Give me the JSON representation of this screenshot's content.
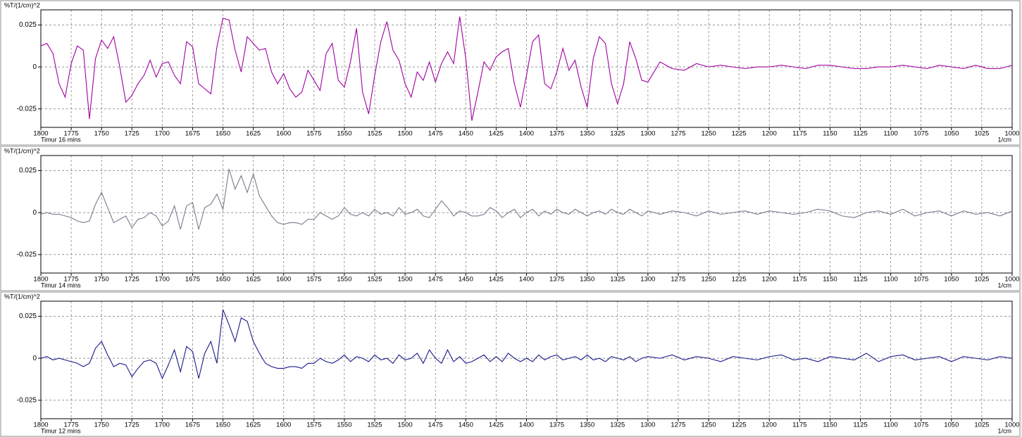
{
  "chart_data": [
    {
      "type": "line",
      "y_label": "%T/(1/cm)^2",
      "x_label": "1/cm",
      "x": [
        1800,
        1795,
        1790,
        1785,
        1780,
        1775,
        1770,
        1765,
        1760,
        1755,
        1750,
        1745,
        1740,
        1735,
        1730,
        1725,
        1720,
        1715,
        1710,
        1705,
        1700,
        1695,
        1690,
        1685,
        1680,
        1675,
        1670,
        1665,
        1660,
        1655,
        1650,
        1645,
        1640,
        1635,
        1630,
        1625,
        1620,
        1615,
        1610,
        1605,
        1600,
        1595,
        1590,
        1585,
        1580,
        1575,
        1570,
        1565,
        1560,
        1555,
        1550,
        1545,
        1540,
        1535,
        1530,
        1525,
        1520,
        1515,
        1510,
        1505,
        1500,
        1495,
        1490,
        1485,
        1480,
        1475,
        1470,
        1465,
        1460,
        1455,
        1450,
        1445,
        1440,
        1435,
        1430,
        1425,
        1420,
        1415,
        1410,
        1405,
        1400,
        1395,
        1390,
        1385,
        1380,
        1375,
        1370,
        1365,
        1360,
        1355,
        1350,
        1345,
        1340,
        1335,
        1330,
        1325,
        1320,
        1315,
        1310,
        1305,
        1300,
        1290,
        1280,
        1270,
        1260,
        1250,
        1240,
        1230,
        1220,
        1210,
        1200,
        1190,
        1180,
        1170,
        1160,
        1150,
        1140,
        1130,
        1120,
        1110,
        1100,
        1090,
        1080,
        1070,
        1060,
        1050,
        1040,
        1030,
        1020,
        1010,
        1000
      ],
      "series": [
        {
          "name": "Timur 16 mins",
          "color": "#a000a0",
          "values": [
            0.0125,
            0.014,
            0.008,
            -0.01,
            -0.018,
            0.002,
            0.0125,
            0.01,
            -0.031,
            0.005,
            0.016,
            0.011,
            0.018,
            0.0,
            -0.021,
            -0.017,
            -0.01,
            -0.005,
            0.004,
            -0.006,
            0.002,
            0.003,
            -0.005,
            -0.01,
            0.015,
            0.012,
            -0.01,
            -0.013,
            -0.016,
            0.012,
            0.029,
            0.028,
            0.01,
            -0.003,
            0.018,
            0.014,
            0.01,
            0.011,
            -0.003,
            -0.01,
            -0.004,
            -0.013,
            -0.018,
            -0.015,
            -0.002,
            -0.008,
            -0.014,
            0.008,
            0.014,
            -0.008,
            -0.012,
            0.003,
            0.023,
            -0.015,
            -0.028,
            -0.005,
            0.015,
            0.027,
            0.01,
            0.004,
            -0.01,
            -0.018,
            -0.003,
            -0.008,
            0.003,
            -0.009,
            0.002,
            0.009,
            0.002,
            0.03,
            0.005,
            -0.032,
            -0.015,
            0.003,
            -0.002,
            0.006,
            0.009,
            0.011,
            -0.01,
            -0.024,
            -0.005,
            0.015,
            0.019,
            -0.01,
            -0.013,
            -0.003,
            0.011,
            -0.002,
            0.004,
            -0.012,
            -0.024,
            0.005,
            0.018,
            0.014,
            -0.01,
            -0.022,
            -0.01,
            0.015,
            0.005,
            -0.008,
            -0.009,
            0.003,
            -0.001,
            -0.002,
            0.002,
            0.0,
            0.001,
            0.0,
            -0.001,
            0.0,
            0.0,
            0.001,
            0.0,
            -0.001,
            0.001,
            0.001,
            0.0,
            -0.001,
            -0.001,
            0.0,
            0.0,
            0.001,
            0.0,
            -0.001,
            0.001,
            0.0,
            -0.001,
            0.001,
            -0.001,
            -0.001,
            0.001
          ]
        }
      ],
      "xlim": [
        1800,
        1000
      ],
      "ylim": [
        -0.036,
        0.034
      ],
      "yticks": [
        -0.025,
        0,
        0.025
      ],
      "xticks": [
        1800,
        1775,
        1750,
        1725,
        1700,
        1675,
        1650,
        1625,
        1600,
        1575,
        1550,
        1525,
        1500,
        1475,
        1450,
        1425,
        1400,
        1375,
        1350,
        1325,
        1300,
        1275,
        1250,
        1225,
        1200,
        1175,
        1150,
        1125,
        1100,
        1075,
        1050,
        1025,
        1000
      ],
      "grid": true
    },
    {
      "type": "line",
      "y_label": "%T/(1/cm)^2",
      "x_label": "1/cm",
      "x": [
        1800,
        1795,
        1790,
        1785,
        1780,
        1775,
        1770,
        1765,
        1760,
        1755,
        1750,
        1745,
        1740,
        1735,
        1730,
        1725,
        1720,
        1715,
        1710,
        1705,
        1700,
        1695,
        1690,
        1685,
        1680,
        1675,
        1670,
        1665,
        1660,
        1655,
        1650,
        1645,
        1640,
        1635,
        1630,
        1625,
        1620,
        1615,
        1610,
        1605,
        1600,
        1595,
        1590,
        1585,
        1580,
        1575,
        1570,
        1565,
        1560,
        1555,
        1550,
        1545,
        1540,
        1535,
        1530,
        1525,
        1520,
        1515,
        1510,
        1505,
        1500,
        1495,
        1490,
        1485,
        1480,
        1475,
        1470,
        1465,
        1460,
        1455,
        1450,
        1445,
        1440,
        1435,
        1430,
        1425,
        1420,
        1415,
        1410,
        1405,
        1400,
        1395,
        1390,
        1385,
        1380,
        1375,
        1370,
        1365,
        1360,
        1355,
        1350,
        1345,
        1340,
        1335,
        1330,
        1325,
        1320,
        1315,
        1310,
        1305,
        1300,
        1290,
        1280,
        1270,
        1260,
        1250,
        1240,
        1230,
        1220,
        1210,
        1200,
        1190,
        1180,
        1170,
        1160,
        1150,
        1140,
        1130,
        1120,
        1110,
        1100,
        1090,
        1080,
        1070,
        1060,
        1050,
        1040,
        1030,
        1020,
        1010,
        1000
      ],
      "series": [
        {
          "name": "Timur 14 mins",
          "color": "#7a7a90",
          "values": [
            -0.001,
            0.0,
            -0.001,
            -0.001,
            -0.002,
            -0.003,
            -0.005,
            -0.006,
            -0.005,
            0.005,
            0.012,
            0.003,
            -0.006,
            -0.004,
            -0.002,
            -0.009,
            -0.004,
            -0.003,
            0.0,
            -0.002,
            -0.008,
            -0.005,
            0.004,
            -0.01,
            0.004,
            0.006,
            -0.01,
            0.003,
            0.005,
            0.011,
            0.002,
            0.026,
            0.014,
            0.022,
            0.012,
            0.023,
            0.01,
            0.004,
            -0.002,
            -0.006,
            -0.007,
            -0.006,
            -0.006,
            -0.007,
            -0.004,
            -0.004,
            0.0,
            -0.002,
            -0.004,
            -0.002,
            0.003,
            -0.001,
            -0.002,
            0.0,
            -0.002,
            0.002,
            -0.001,
            0.0,
            -0.002,
            0.003,
            -0.001,
            0.0,
            0.002,
            -0.002,
            -0.003,
            0.002,
            0.007,
            0.003,
            -0.002,
            0.001,
            0.0,
            -0.002,
            -0.002,
            -0.001,
            0.003,
            0.001,
            -0.003,
            0.0,
            0.002,
            -0.003,
            0.0,
            0.002,
            -0.002,
            0.001,
            -0.001,
            0.002,
            0.0,
            -0.001,
            0.002,
            0.0,
            -0.002,
            0.0,
            0.001,
            -0.001,
            0.002,
            0.0,
            -0.001,
            0.002,
            0.0,
            -0.002,
            0.001,
            -0.001,
            0.001,
            0.0,
            -0.002,
            0.001,
            -0.001,
            0.0,
            0.001,
            -0.001,
            0.001,
            0.0,
            -0.001,
            0.0,
            0.002,
            0.001,
            -0.002,
            -0.003,
            0.0,
            0.001,
            -0.001,
            0.002,
            -0.002,
            0.0,
            0.001,
            -0.002,
            0.001,
            -0.001,
            0.0,
            -0.002,
            0.001
          ]
        }
      ],
      "xlim": [
        1800,
        1000
      ],
      "ylim": [
        -0.036,
        0.034
      ],
      "yticks": [
        -0.025,
        0,
        0.025
      ],
      "xticks": [
        1800,
        1775,
        1750,
        1725,
        1700,
        1675,
        1650,
        1625,
        1600,
        1575,
        1550,
        1525,
        1500,
        1475,
        1450,
        1425,
        1400,
        1375,
        1350,
        1325,
        1300,
        1275,
        1250,
        1225,
        1200,
        1175,
        1150,
        1125,
        1100,
        1075,
        1050,
        1025,
        1000
      ],
      "grid": true
    },
    {
      "type": "line",
      "y_label": "%T/(1/cm)^2",
      "x_label": "1/cm",
      "x": [
        1800,
        1795,
        1790,
        1785,
        1780,
        1775,
        1770,
        1765,
        1760,
        1755,
        1750,
        1745,
        1740,
        1735,
        1730,
        1725,
        1720,
        1715,
        1710,
        1705,
        1700,
        1695,
        1690,
        1685,
        1680,
        1675,
        1670,
        1665,
        1660,
        1655,
        1650,
        1645,
        1640,
        1635,
        1630,
        1625,
        1620,
        1615,
        1610,
        1605,
        1600,
        1595,
        1590,
        1585,
        1580,
        1575,
        1570,
        1565,
        1560,
        1555,
        1550,
        1545,
        1540,
        1535,
        1530,
        1525,
        1520,
        1515,
        1510,
        1505,
        1500,
        1495,
        1490,
        1485,
        1480,
        1475,
        1470,
        1465,
        1460,
        1455,
        1450,
        1445,
        1440,
        1435,
        1430,
        1425,
        1420,
        1415,
        1410,
        1405,
        1400,
        1395,
        1390,
        1385,
        1380,
        1375,
        1370,
        1365,
        1360,
        1355,
        1350,
        1345,
        1340,
        1335,
        1330,
        1325,
        1320,
        1315,
        1310,
        1305,
        1300,
        1290,
        1280,
        1270,
        1260,
        1250,
        1240,
        1230,
        1220,
        1210,
        1200,
        1190,
        1180,
        1170,
        1160,
        1150,
        1140,
        1130,
        1120,
        1110,
        1100,
        1090,
        1080,
        1070,
        1060,
        1050,
        1040,
        1030,
        1020,
        1010,
        1000
      ],
      "series": [
        {
          "name": "Timur 12 mins",
          "color": "#1a1a8c",
          "values": [
            0.0,
            0.001,
            -0.001,
            0.0,
            -0.001,
            -0.002,
            -0.003,
            -0.005,
            -0.003,
            0.006,
            0.01,
            0.002,
            -0.005,
            -0.003,
            -0.004,
            -0.011,
            -0.006,
            -0.002,
            -0.001,
            -0.003,
            -0.012,
            -0.004,
            0.005,
            -0.008,
            0.007,
            0.004,
            -0.012,
            0.003,
            0.01,
            -0.003,
            0.029,
            0.02,
            0.01,
            0.024,
            0.022,
            0.01,
            0.003,
            -0.003,
            -0.005,
            -0.006,
            -0.006,
            -0.005,
            -0.005,
            -0.006,
            -0.003,
            -0.003,
            0.0,
            -0.002,
            -0.003,
            -0.001,
            0.002,
            -0.002,
            0.001,
            0.0,
            -0.002,
            0.002,
            -0.001,
            0.0,
            -0.003,
            0.002,
            -0.001,
            0.0,
            0.003,
            -0.003,
            0.005,
            0.0,
            -0.003,
            0.005,
            -0.002,
            0.001,
            -0.003,
            -0.002,
            0.0,
            0.002,
            -0.002,
            0.001,
            -0.002,
            0.003,
            0.0,
            -0.002,
            0.0,
            -0.002,
            0.002,
            -0.001,
            0.001,
            0.002,
            -0.001,
            0.0,
            0.001,
            -0.001,
            0.002,
            -0.001,
            0.0,
            -0.002,
            0.001,
            0.0,
            -0.001,
            0.001,
            -0.002,
            0.0,
            0.001,
            0.0,
            0.002,
            -0.001,
            0.001,
            0.0,
            -0.002,
            0.001,
            0.0,
            -0.001,
            0.001,
            0.002,
            -0.001,
            0.0,
            -0.002,
            0.001,
            0.0,
            -0.001,
            0.003,
            -0.002,
            0.001,
            0.002,
            -0.001,
            0.0,
            0.001,
            -0.002,
            0.001,
            0.0,
            -0.001,
            0.001,
            0.0
          ]
        }
      ],
      "xlim": [
        1800,
        1000
      ],
      "ylim": [
        -0.036,
        0.034
      ],
      "yticks": [
        -0.025,
        0,
        0.025
      ],
      "xticks": [
        1800,
        1775,
        1750,
        1725,
        1700,
        1675,
        1650,
        1625,
        1600,
        1575,
        1550,
        1525,
        1500,
        1475,
        1450,
        1425,
        1400,
        1375,
        1350,
        1325,
        1300,
        1275,
        1250,
        1225,
        1200,
        1175,
        1150,
        1125,
        1100,
        1075,
        1050,
        1025,
        1000
      ],
      "grid": true
    }
  ]
}
